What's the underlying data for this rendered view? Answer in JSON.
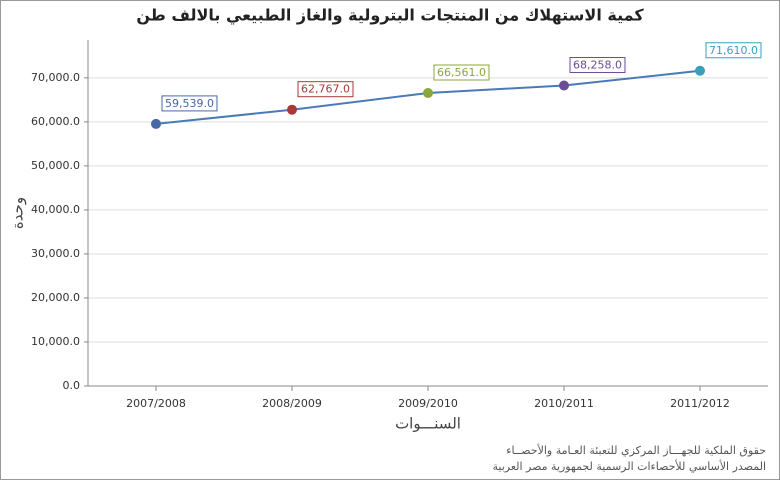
{
  "chart_data": {
    "type": "line",
    "title": "كمية الاستهلاك من المنتجات البترولية والغاز الطبيعي بالالف طن",
    "x_label": "السنـــوات",
    "y_label": "وحدة",
    "categories": [
      "2007/2008",
      "2008/2009",
      "2009/2010",
      "2010/2011",
      "2011/2012"
    ],
    "series": [
      {
        "color": "#4a7ab8",
        "values": [
          59539,
          62767,
          66561,
          68258,
          71610
        ],
        "value_labels": [
          "59,539.0",
          "62,767.0",
          "66,561.0",
          "68,258.0",
          "71,610.0"
        ],
        "point_colors": [
          "#4767a5",
          "#a83a3a",
          "#8aa63c",
          "#6a4c98",
          "#3a9fb8"
        ]
      }
    ],
    "ylim": [
      0,
      78600
    ],
    "yticks": [
      {
        "value": 0,
        "label": "0.0"
      },
      {
        "value": 10000,
        "label": "10,000.0"
      },
      {
        "value": 20000,
        "label": "20,000.0"
      },
      {
        "value": 30000,
        "label": "30,000.0"
      },
      {
        "value": 40000,
        "label": "40,000.0"
      },
      {
        "value": 50000,
        "label": "50,000.0"
      },
      {
        "value": 60000,
        "label": "60,000.0"
      },
      {
        "value": 70000,
        "label": "70,000.0"
      }
    ],
    "grid": true,
    "source_notes": [
      "حقوق الملكية للجهـــاز المركزي للتعبئة العـامة والأحصــاء",
      "المصدر الأساسي للأحصاءات الرسمية لجمهورية مصر العربية"
    ]
  }
}
